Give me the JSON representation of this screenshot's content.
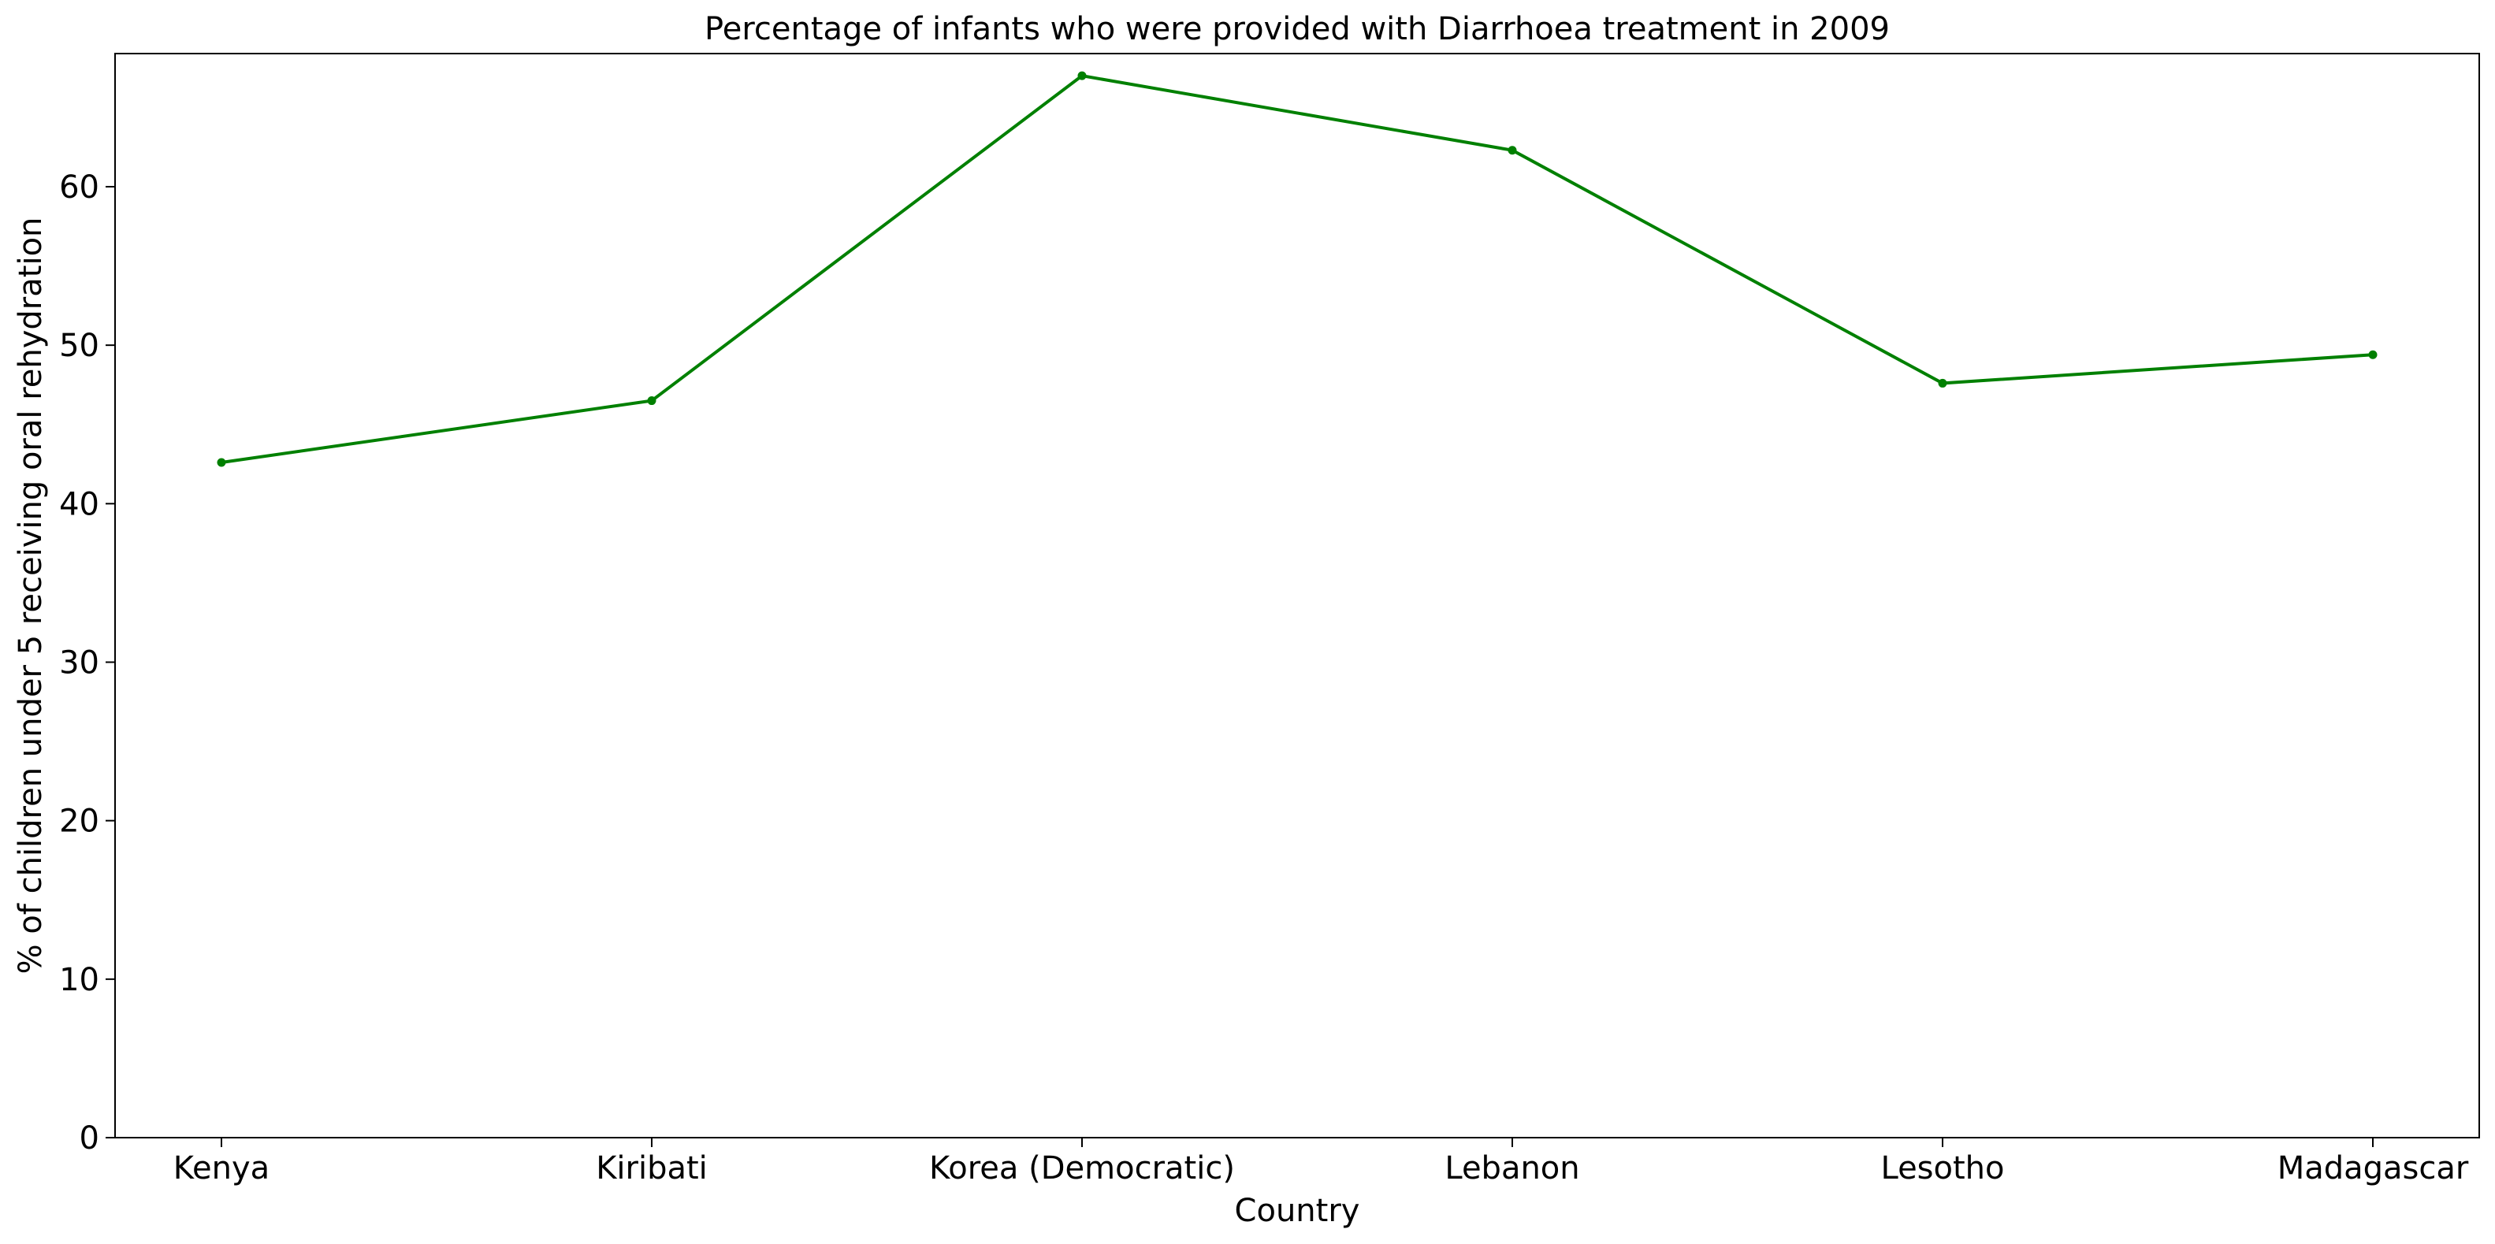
{
  "chart_data": {
    "type": "line",
    "title": "Percentage of infants who were provided with Diarrhoea treatment in 2009",
    "xlabel": "Country",
    "ylabel": "% of children under 5 receiving oral rehydration",
    "categories": [
      "Kenya",
      "Kiribati",
      "Korea (Democratic)",
      "Lebanon",
      "Lesotho",
      "Madagascar"
    ],
    "series": [
      {
        "values": [
          42.6,
          46.5,
          67.0,
          62.3,
          47.6,
          49.4
        ]
      }
    ],
    "ylim": [
      0,
      68.4
    ],
    "yticks": [
      0,
      10,
      20,
      30,
      40,
      50,
      60
    ],
    "grid": false,
    "legend": "none",
    "colors": {
      "line": "#008000",
      "axes": "#000000",
      "background": "#ffffff"
    }
  }
}
